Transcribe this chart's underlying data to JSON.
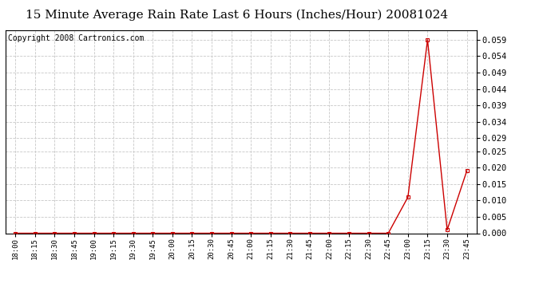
{
  "title": "15 Minute Average Rain Rate Last 6 Hours (Inches/Hour) 20081024",
  "copyright": "Copyright 2008 Cartronics.com",
  "x_labels": [
    "18:00",
    "18:15",
    "18:30",
    "18:45",
    "19:00",
    "19:15",
    "19:30",
    "19:45",
    "20:00",
    "20:15",
    "20:30",
    "20:45",
    "21:00",
    "21:15",
    "21:30",
    "21:45",
    "22:00",
    "22:15",
    "22:30",
    "22:45",
    "23:00",
    "23:15",
    "23:30",
    "23:45"
  ],
  "y_values": [
    0.0,
    0.0,
    0.0,
    0.0,
    0.0,
    0.0,
    0.0,
    0.0,
    0.0,
    0.0,
    0.0,
    0.0,
    0.0,
    0.0,
    0.0,
    0.0,
    0.0,
    0.0,
    0.0,
    0.0,
    0.011,
    0.059,
    0.001,
    0.019
  ],
  "line_color": "#cc0000",
  "marker_color": "#cc0000",
  "bg_color": "#ffffff",
  "grid_color": "#c8c8c8",
  "title_fontsize": 11,
  "copyright_fontsize": 7,
  "y_min": 0.0,
  "y_max": 0.062,
  "y_ticks": [
    0.0,
    0.005,
    0.01,
    0.015,
    0.02,
    0.025,
    0.029,
    0.034,
    0.039,
    0.044,
    0.049,
    0.054,
    0.059
  ]
}
